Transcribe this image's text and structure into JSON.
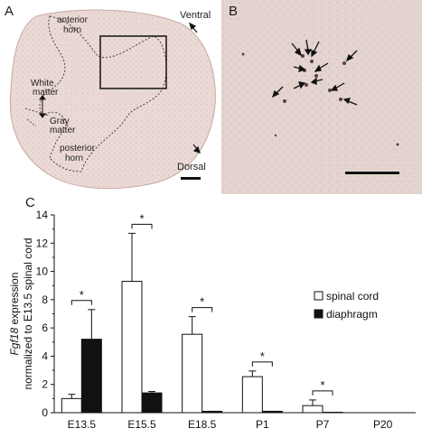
{
  "panels": {
    "a": {
      "label": "A",
      "annotations": {
        "anterior_horn": [
          "anterior",
          "horn"
        ],
        "white_matter": [
          "White",
          "matter"
        ],
        "gray_matter": [
          "Gray",
          "matter"
        ],
        "posterior_horn": [
          "posterior",
          "horn"
        ],
        "ventral": "Ventral",
        "dorsal": "Dorsal"
      }
    },
    "b": {
      "label": "B"
    },
    "c": {
      "label": "C"
    }
  },
  "colors": {
    "tissue": "#e9d8d3",
    "background_b": "#e4d4cf",
    "spinal_cord_fill": "#ffffff",
    "diaphragm_fill": "#111111"
  },
  "chart_data": {
    "type": "bar",
    "categories": [
      "E13.5",
      "E15.5",
      "E18.5",
      "P1",
      "P7",
      "P20"
    ],
    "series": [
      {
        "name": "spinal cord",
        "values": [
          1.0,
          9.3,
          5.55,
          2.55,
          0.5,
          0.0
        ],
        "errors": [
          0.3,
          3.4,
          1.25,
          0.4,
          0.4,
          0.0
        ],
        "color": "#ffffff"
      },
      {
        "name": "diaphragm",
        "values": [
          5.2,
          1.4,
          0.1,
          0.1,
          0.03,
          0.0
        ],
        "errors": [
          2.1,
          0.1,
          0.0,
          0.0,
          0.0,
          0.0
        ],
        "color": "#111111"
      }
    ],
    "ylabel_italic": "Fgf18",
    "ylabel_rest": " expression",
    "ylabel_line2": "normalized to E13.5 spinal cord",
    "ylim": [
      0,
      14
    ],
    "yticks": [
      "0",
      "2",
      "4",
      "6",
      "8",
      "10",
      "12",
      "14"
    ],
    "significance": [
      "*",
      "*",
      "*",
      "*",
      "*"
    ],
    "legend_position": "right"
  }
}
